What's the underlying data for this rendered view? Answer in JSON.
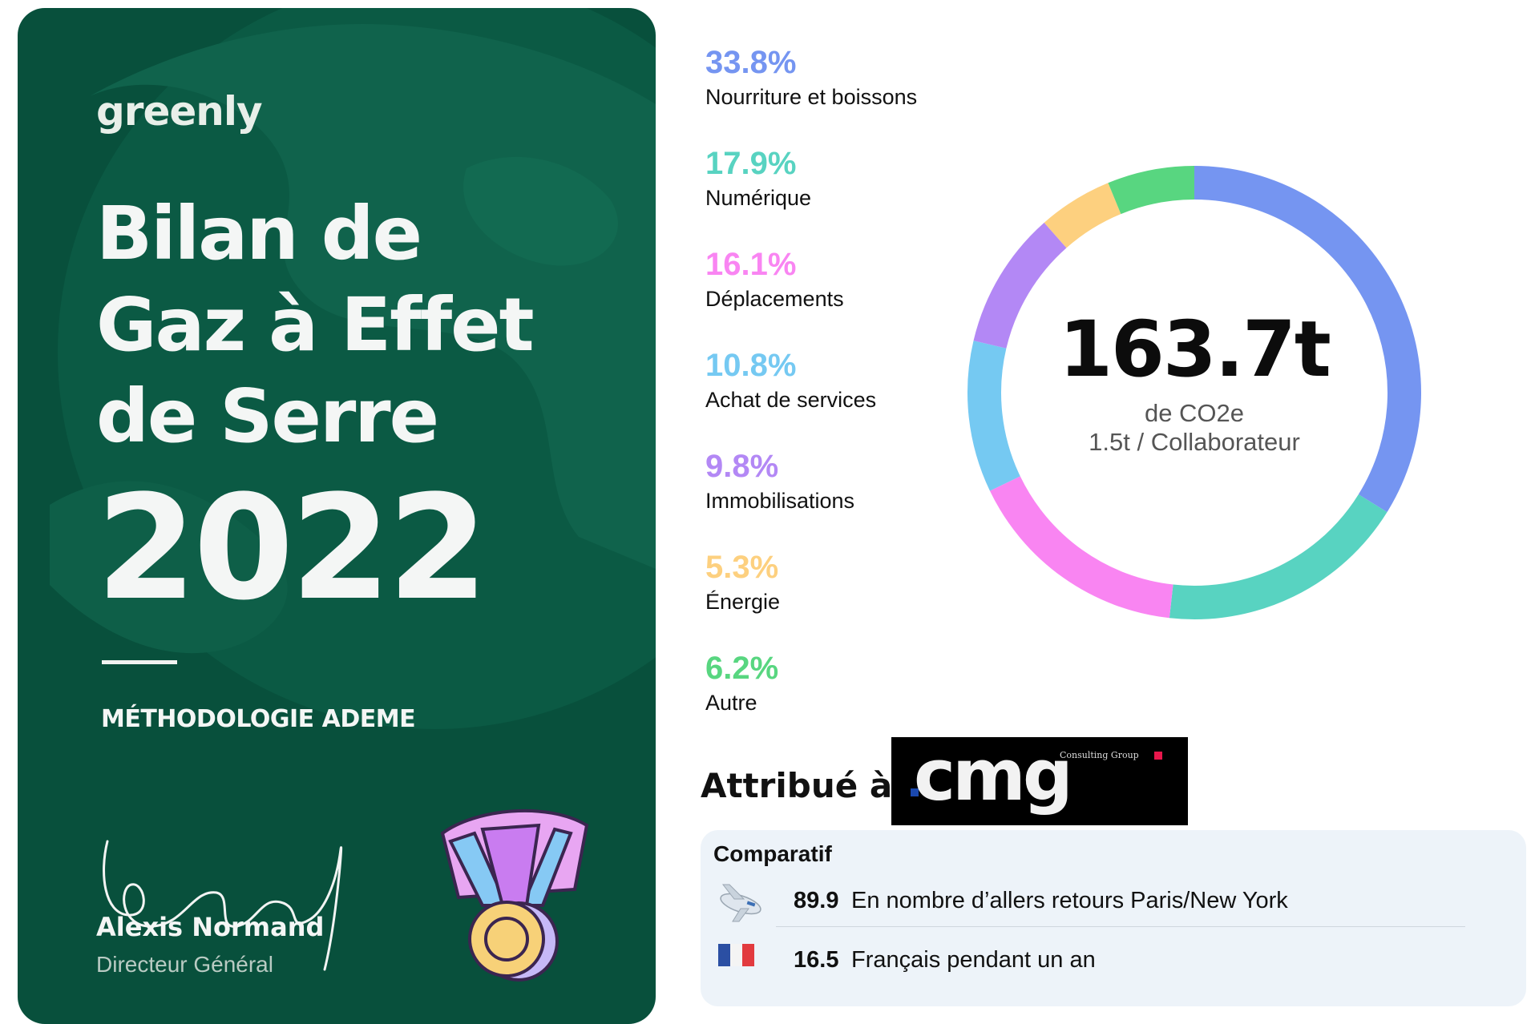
{
  "card": {
    "brand": "greenly",
    "title_lines": [
      "Bilan de",
      "Gaz à Effet",
      "de Serre"
    ],
    "year": "2022",
    "methodology": "MÉTHODOLOGIE ADEME",
    "signer_name": "Alexis Normand",
    "signer_role": "Directeur Général",
    "background_color": "#08503c"
  },
  "chart_data": {
    "type": "pie",
    "style": "donut",
    "categories": [
      "Nourriture et boissons",
      "Numérique",
      "Déplacements",
      "Achat de services",
      "Immobilisations",
      "Énergie",
      "Autre"
    ],
    "values": [
      33.8,
      17.9,
      16.1,
      10.8,
      9.8,
      5.3,
      6.2
    ],
    "value_labels": [
      "33.8%",
      "17.9%",
      "16.1%",
      "10.8%",
      "9.8%",
      "5.3%",
      "6.2%"
    ],
    "colors": [
      "#7595f1",
      "#58d3c1",
      "#f985f2",
      "#75c9f2",
      "#b388f5",
      "#fdd07f",
      "#58d680"
    ],
    "center_value": "163.7t",
    "center_unit": "de CO2e",
    "center_per_capita": "1.5t / Collaborateur",
    "legend_position": "left"
  },
  "attribution": {
    "label": "Attribué à",
    "logo_text": "cmg",
    "logo_subtext": "Consulting Group"
  },
  "comparison": {
    "title": "Comparatif",
    "rows": [
      {
        "icon": "airplane-icon",
        "value": "89.9",
        "text": "En nombre d’allers retours Paris/New York"
      },
      {
        "icon": "french-flag-icon",
        "value": "16.5",
        "text": "Français pendant un an"
      }
    ]
  }
}
